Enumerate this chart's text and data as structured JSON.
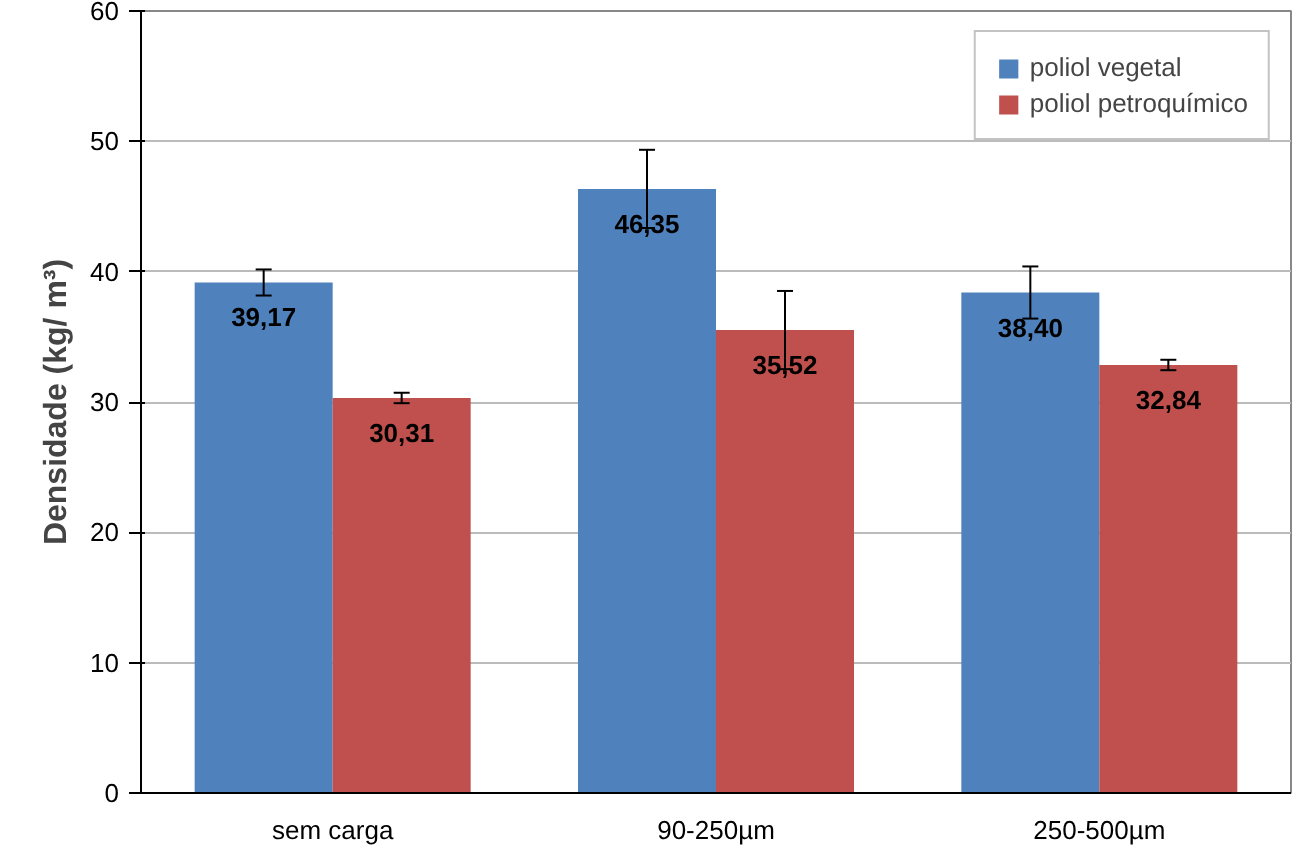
{
  "chart_data": {
    "type": "bar",
    "ylabel": "Densidade (kg/ m³)",
    "categories": [
      "sem carga",
      "90-250µm",
      "250-500µm"
    ],
    "series": [
      {
        "name": "poliol vegetal",
        "color": "#4f81bd",
        "values": [
          39.17,
          46.35,
          38.4
        ],
        "errors": [
          1.0,
          3.0,
          2.0
        ],
        "value_labels": [
          "39,17",
          "46,35",
          "38,40"
        ]
      },
      {
        "name": "poliol petroquímico",
        "color": "#c0504d",
        "values": [
          30.31,
          35.52,
          32.84
        ],
        "errors": [
          0.4,
          3.0,
          0.4
        ],
        "value_labels": [
          "30,31",
          "35,52",
          "32,84"
        ]
      }
    ],
    "ylim": [
      0,
      60
    ],
    "yticks": [
      0,
      10,
      20,
      30,
      40,
      50,
      60
    ],
    "grid": "y",
    "legend": "top right"
  }
}
